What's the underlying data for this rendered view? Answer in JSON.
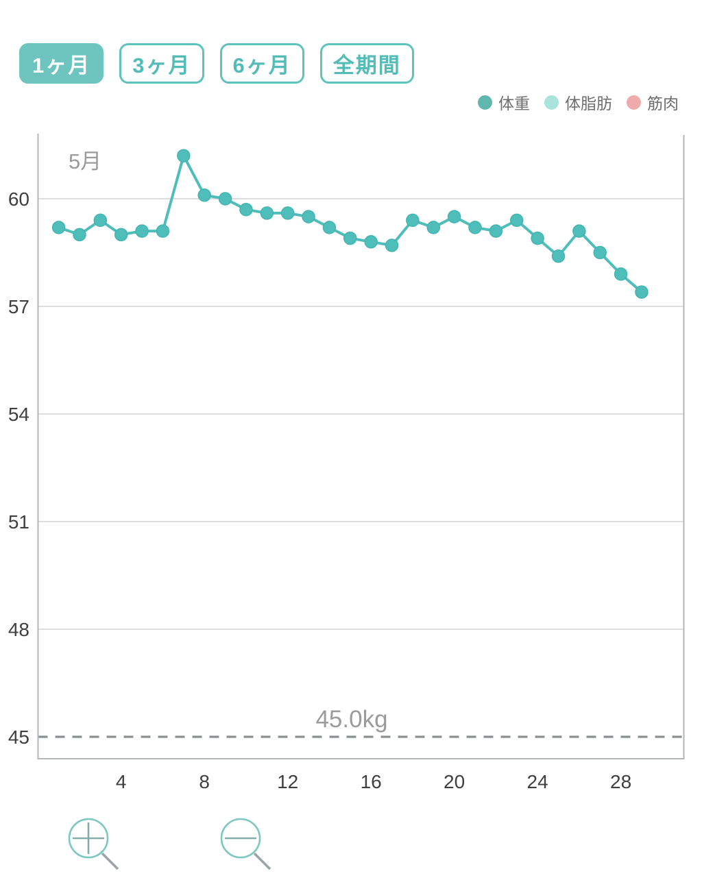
{
  "period_tabs": {
    "items": [
      {
        "label": "1ヶ月",
        "selected": true
      },
      {
        "label": "3ヶ月",
        "selected": false
      },
      {
        "label": "6ヶ月",
        "selected": false
      },
      {
        "label": "全期間",
        "selected": false
      }
    ]
  },
  "legend": {
    "items": [
      {
        "label": "体重",
        "color": "#60b7ae"
      },
      {
        "label": "体脂肪",
        "color": "#a9e3db"
      },
      {
        "label": "筋肉",
        "color": "#efaaab"
      }
    ]
  },
  "chart_data": {
    "type": "line",
    "month_label": "5月",
    "x_ticks": [
      4,
      8,
      12,
      16,
      20,
      24,
      28
    ],
    "y_ticks": [
      60,
      57,
      54,
      51,
      48,
      45
    ],
    "x_range_days": [
      0,
      31
    ],
    "y_range": [
      44.4,
      61.8
    ],
    "grid": true,
    "legend_position": "top-right",
    "series": [
      {
        "name": "体重",
        "unit": "kg",
        "color": "#4fbeba",
        "days": [
          1,
          2,
          3,
          4,
          5,
          6,
          7,
          8,
          9,
          10,
          11,
          12,
          13,
          14,
          15,
          16,
          17,
          18,
          19,
          20,
          21,
          22,
          23,
          24,
          25,
          26,
          27,
          28,
          29
        ],
        "values": [
          59.2,
          59.0,
          59.4,
          59.0,
          59.1,
          59.1,
          61.2,
          60.1,
          60.0,
          59.7,
          59.6,
          59.6,
          59.5,
          59.2,
          58.9,
          58.8,
          58.7,
          59.4,
          59.2,
          59.5,
          59.2,
          59.1,
          59.4,
          58.9,
          58.4,
          59.1,
          58.5,
          57.9,
          57.4
        ]
      },
      {
        "name": "体脂肪",
        "unit": "%",
        "color": "#a9e3db",
        "days": [],
        "values": []
      },
      {
        "name": "筋肉",
        "unit": "kg",
        "color": "#efaaab",
        "days": [],
        "values": []
      }
    ],
    "goal_line": {
      "value": 45,
      "label": "45.0kg",
      "style": "dashed",
      "color": "#8a8f92"
    },
    "axis_label_color": "#3f3f3f",
    "muted_label_color": "#9b9b9b",
    "grid_color": "#dddddd",
    "border_color": "#b3b6b8"
  },
  "zoom_controls": {
    "zoom_in_icon": "magnifier-plus-icon",
    "zoom_out_icon": "magnifier-minus-icon",
    "circle_color": "#7cc7c2",
    "glyph_color": "#84aca9",
    "handle_color": "#9aa5a8"
  }
}
